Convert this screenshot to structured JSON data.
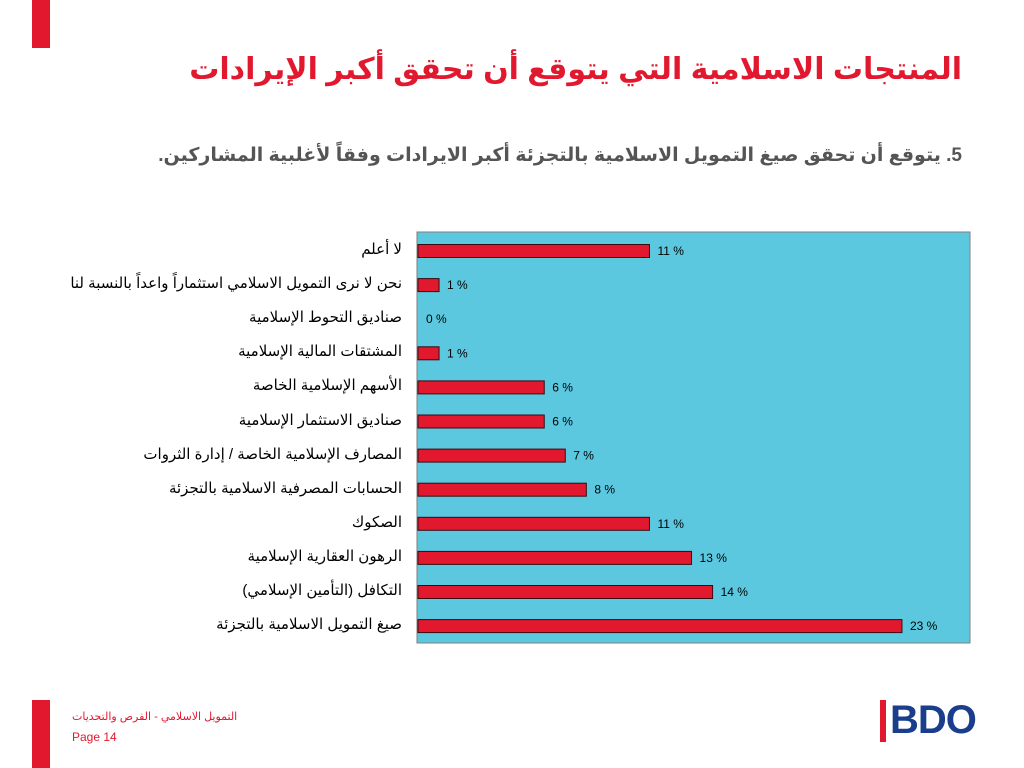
{
  "slide": {
    "title": "المنتجات الاسلامية التي يتوقع أن تحقق أكبر الإيرادات",
    "subtitle": "5. يتوقع أن تحقق صيغ التمويل الاسلامية بالتجزئة أكبر الايرادات وفقاً لأغلبية المشاركين.",
    "footer_text": "التمويل الاسلامي - الفرص والتحديات",
    "page_label": "Page 14",
    "logo_text": "BDO"
  },
  "colors": {
    "accent": "#e2182f",
    "plot_background": "#5bc8e0",
    "bar_fill": "#e2182f",
    "bdo_blue": "#1a3e8c"
  },
  "chart_data": {
    "type": "bar",
    "orientation": "horizontal",
    "categories": [
      "لا أعلم",
      "نحن لا نرى التمويل الاسلامي استثماراً واعداً بالنسبة لنا",
      "صناديق التحوط الإسلامية",
      "المشتقات المالية الإسلامية",
      "الأسهم الإسلامية الخاصة",
      "صناديق الاستثمار الإسلامية",
      "المصارف الإسلامية الخاصة / إدارة الثروات",
      "الحسابات المصرفية الاسلامية بالتجزئة",
      "الصكوك",
      "الرهون العقارية الإسلامية",
      "التكافل (التأمين الإسلامي)",
      "صيغ التمويل الاسلامية بالتجزئة"
    ],
    "values": [
      11,
      1,
      0,
      1,
      6,
      6,
      7,
      8,
      11,
      13,
      14,
      23
    ],
    "value_labels": [
      "11 %",
      "1 %",
      "0 %",
      "1 %",
      "6 %",
      "6 %",
      "7 %",
      "8 %",
      "11 %",
      "13 %",
      "14 %",
      "23 %"
    ],
    "xlim": [
      0,
      24
    ],
    "grid": false,
    "legend": "none"
  }
}
